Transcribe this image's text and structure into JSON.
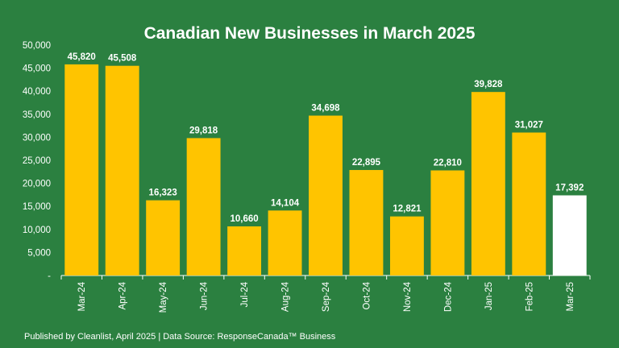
{
  "chart_data": {
    "type": "bar",
    "title": "Canadian New Businesses in March 2025",
    "categories": [
      "Mar-24",
      "Apr-24",
      "May-24",
      "Jun-24",
      "Jul-24",
      "Aug-24",
      "Sep-24",
      "Oct-24",
      "Nov-24",
      "Dec-24",
      "Jan-25",
      "Feb-25",
      "Mar-25"
    ],
    "values": [
      45820,
      45508,
      16323,
      29818,
      10660,
      14104,
      34698,
      22895,
      12821,
      22810,
      39828,
      31027,
      17392
    ],
    "value_labels": [
      "45,820",
      "45,508",
      "16,323",
      "29,818",
      "10,660",
      "14,104",
      "34,698",
      "22,895",
      "12,821",
      "22,810",
      "39,828",
      "31,027",
      "17,392"
    ],
    "ylim": [
      0,
      50000
    ],
    "yticks": [
      0,
      5000,
      10000,
      15000,
      20000,
      25000,
      30000,
      35000,
      40000,
      45000,
      50000
    ],
    "ytick_labels": [
      "-",
      "5,000",
      "10,000",
      "15,000",
      "20,000",
      "25,000",
      "30,000",
      "35,000",
      "40,000",
      "45,000",
      "50,000"
    ],
    "xlabel": "",
    "ylabel": "",
    "grid": false,
    "colors": {
      "background": "#2b8040",
      "bar": "#ffc400",
      "highlight_bar": "#ffffff",
      "text": "#ffffff"
    },
    "highlight_index": 12
  },
  "footer": {
    "text": "Published by Cleanlist, April 2025 | Data Source: ResponseCanada™ Business"
  }
}
